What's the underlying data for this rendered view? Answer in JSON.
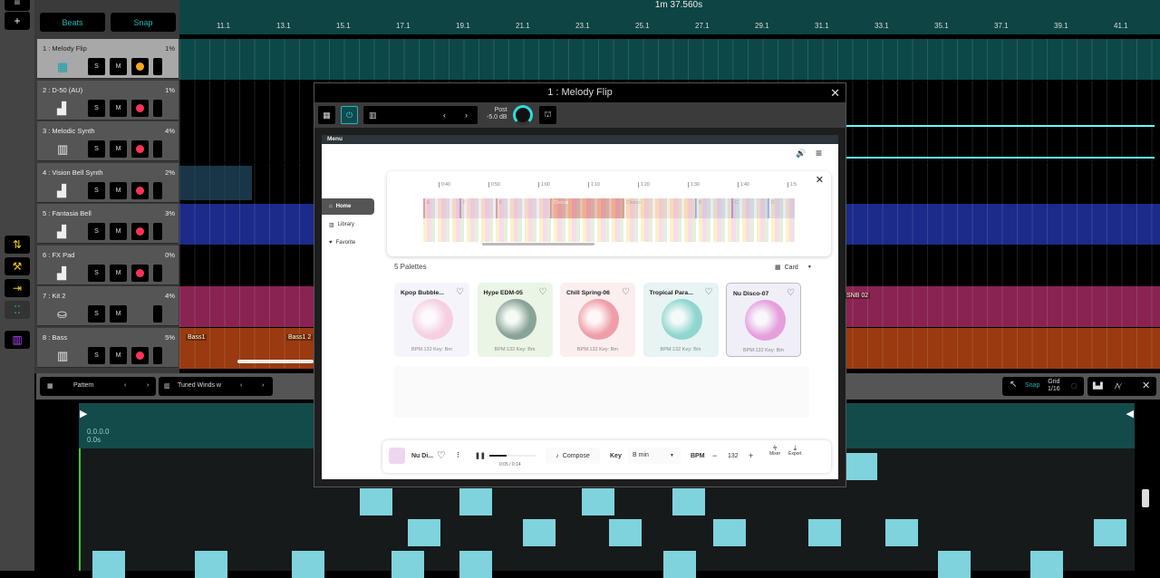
{
  "header": {
    "time": "1m 37.560s",
    "beats_label": "Beats",
    "snap_label": "Snap"
  },
  "ruler": [
    "11.1",
    "13.1",
    "15.1",
    "17.1",
    "19.1",
    "21.1",
    "23.1",
    "25.1",
    "27.1",
    "29.1",
    "31.1",
    "33.1",
    "35.1",
    "37.1",
    "39.1",
    "41.1"
  ],
  "tracks": [
    {
      "name": "1 : Melody Flip",
      "cpu": "1%",
      "icon": "drum-pad-icon",
      "rec": "#f5a623",
      "selected": true
    },
    {
      "name": "2 : D-50 (AU)",
      "cpu": "1%",
      "icon": "instrument-plugin-icon",
      "rec": "#ff3355"
    },
    {
      "name": "3 : Melodic Synth",
      "cpu": "4%",
      "icon": "keyboard-icon",
      "rec": "#ff3355"
    },
    {
      "name": "4 : Vision Bell Synth",
      "cpu": "2%",
      "icon": "level-meter-icon",
      "rec": "#ff3355"
    },
    {
      "name": "5 : Fantasia Bell",
      "cpu": "3%",
      "icon": "level-meter-icon",
      "rec": "#ff3355"
    },
    {
      "name": "6 : FX Pad",
      "cpu": "0%",
      "icon": "level-meter-icon",
      "rec": "#ff3355"
    },
    {
      "name": "7 : Kit 2",
      "cpu": "4%",
      "icon": "drum-kit-icon",
      "rec": null
    },
    {
      "name": "8 : Bass",
      "cpu": "5%",
      "icon": "keyboard-icon",
      "rec": "#ff3355"
    }
  ],
  "track_buttons": {
    "solo": "S",
    "mute": "M"
  },
  "clips": {
    "bass1": "Bass1",
    "bass1_2": "Bass1 2",
    "snb": "SNB 02"
  },
  "plugin": {
    "title": "1 : Melody Flip",
    "post_label": "Post",
    "post_db": "-5.0 dB",
    "menu": "Menu",
    "nav": [
      "Home",
      "Library",
      "Favorite"
    ],
    "timeline_ticks": [
      "0:40",
      "0:50",
      "1:00",
      "1:10",
      "1:20",
      "1:30",
      "1:40",
      "1:5"
    ],
    "sections": [
      "E",
      "F",
      "F",
      "Chorus",
      "Chorus",
      "B",
      "C",
      "D"
    ],
    "palettes_count": "5 Palettes",
    "view_mode": "Card",
    "palettes": [
      {
        "name": "Kpop Bubble...",
        "info": "BPM:132 Key: Bm",
        "bg": "#f6f4fb",
        "circle": "#f6cfe0"
      },
      {
        "name": "Hype EDM-05",
        "info": "BPM:132 Key: Bm",
        "bg": "#eaf5e6",
        "circle": "#8aa398"
      },
      {
        "name": "Chill Spring-06",
        "info": "BPM:132 Key: Bm",
        "bg": "#fbeeee",
        "circle": "#ef9ea8"
      },
      {
        "name": "Tropical Para...",
        "info": "BPM:132 Key: Bm",
        "bg": "#e8f3f3",
        "circle": "#8fd6cf"
      },
      {
        "name": "Nu Disco-07",
        "info": "BPM:132 Key: Bm",
        "bg": "#f0eef7",
        "circle": "#e59fdc"
      }
    ],
    "player": {
      "name": "Nu Di...",
      "time": "0:05 / 0:14",
      "progress": 0.36,
      "compose": "Compose",
      "key_label": "Key",
      "key": "B min",
      "bpm_label": "BPM",
      "bpm": "132",
      "mixer": "Mixer",
      "export": "Export"
    }
  },
  "bottom_toolbar": {
    "pattern": "Pattern",
    "instrument": "Tuned Winds w",
    "snap": "Snap",
    "grid_label": "Grid",
    "grid": "1/16"
  },
  "piano_roll": {
    "position": "0.0.0.0",
    "seconds": "0.0s"
  }
}
